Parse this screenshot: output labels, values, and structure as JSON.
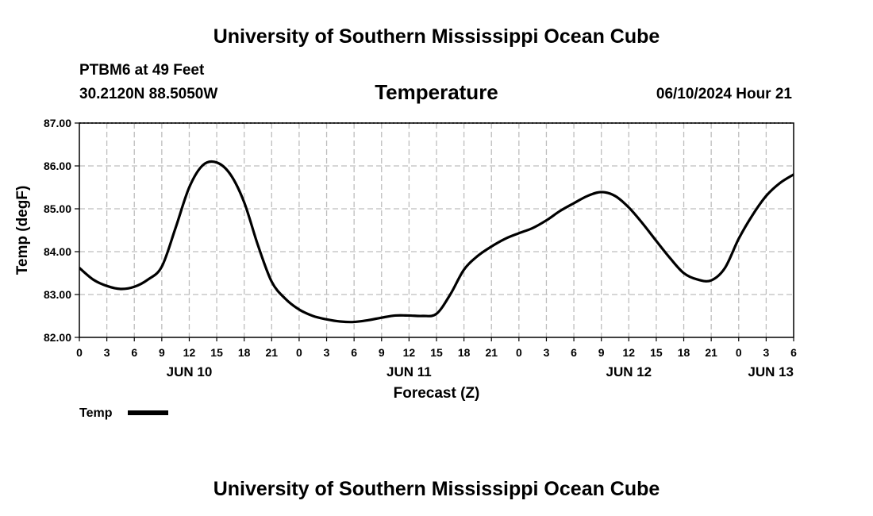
{
  "header": {
    "title": "University of Southern Mississippi Ocean Cube",
    "station": "PTBM6 at 49 Feet",
    "coords": "30.2120N  88.5050W",
    "datetime": "06/10/2024 Hour 21",
    "footer_title": "University of Southern Mississippi Ocean Cube"
  },
  "colors": {
    "line": "#000000",
    "grid": "#bdbdbd",
    "background": "#ffffff"
  },
  "chart_data": {
    "type": "line",
    "title": "Temperature",
    "xlabel": "Forecast (Z)",
    "ylabel": "Temp (degF)",
    "xlim": [
      0,
      78
    ],
    "ylim": [
      82.0,
      87.0
    ],
    "x_tick_step_hours": 3,
    "x_ticks": [
      "0",
      "3",
      "6",
      "9",
      "12",
      "15",
      "18",
      "21",
      "0",
      "3",
      "6",
      "9",
      "12",
      "15",
      "18",
      "21",
      "0",
      "3",
      "6",
      "9",
      "12",
      "15",
      "18",
      "21",
      "0",
      "3",
      "6"
    ],
    "y_ticks": [
      "82.00",
      "83.00",
      "84.00",
      "85.00",
      "86.00",
      "87.00"
    ],
    "day_labels": [
      {
        "label": "JUN 10",
        "hour": 12
      },
      {
        "label": "JUN 11",
        "hour": 36
      },
      {
        "label": "JUN 12",
        "hour": 60
      },
      {
        "label": "JUN 13",
        "hour": 78
      }
    ],
    "grid": true,
    "legend": {
      "position": "bottom-left",
      "entries": [
        "Temp"
      ]
    },
    "series": [
      {
        "name": "Temp",
        "x": [
          0,
          1.5,
          3,
          4.5,
          6,
          7.5,
          9,
          10.5,
          12,
          13.5,
          15,
          16.5,
          18,
          19.5,
          21,
          22.5,
          24,
          25.5,
          27,
          28.5,
          30,
          31.5,
          33,
          34.5,
          36,
          37.5,
          39,
          40.5,
          42,
          43.5,
          45,
          46.5,
          48,
          49.5,
          51,
          52.5,
          54,
          55.5,
          57,
          58.5,
          60,
          61.5,
          63,
          64.5,
          66,
          67.5,
          69,
          70.5,
          72,
          73.5,
          75,
          76.5,
          78
        ],
        "values": [
          83.62,
          83.35,
          83.2,
          83.13,
          83.18,
          83.35,
          83.65,
          84.55,
          85.5,
          86.02,
          86.08,
          85.8,
          85.15,
          84.15,
          83.3,
          82.9,
          82.65,
          82.5,
          82.42,
          82.37,
          82.36,
          82.4,
          82.46,
          82.51,
          82.51,
          82.5,
          82.55,
          83.0,
          83.58,
          83.9,
          84.12,
          84.3,
          84.43,
          84.55,
          84.73,
          84.95,
          85.13,
          85.3,
          85.39,
          85.3,
          85.03,
          84.66,
          84.25,
          83.85,
          83.5,
          83.35,
          83.33,
          83.62,
          84.3,
          84.85,
          85.3,
          85.6,
          85.8
        ]
      }
    ]
  }
}
